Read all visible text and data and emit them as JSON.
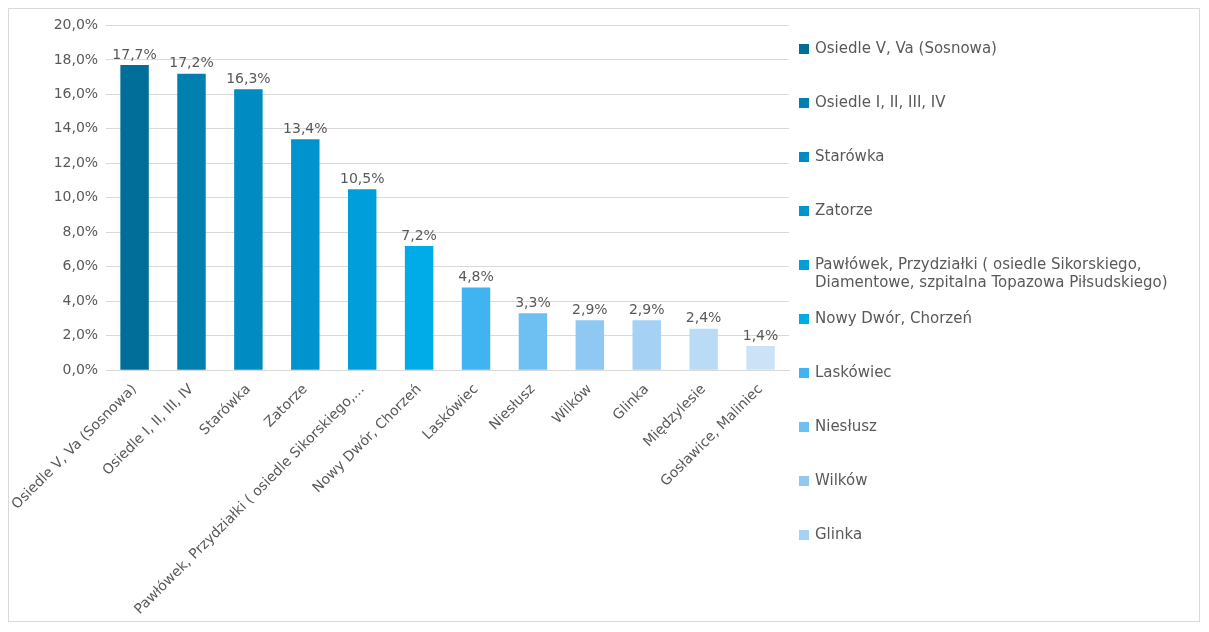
{
  "chart_data": {
    "type": "bar",
    "categories": [
      "Osiedle V, Va (Sosnowa)",
      "Osiedle I, II, III, IV",
      "Starówka",
      "Zatorze",
      "Pawłówek, Przydziałki ( osiedle Sikorskiego,...",
      "Nowy Dwór, Chorzeń",
      "Laskówiec",
      "Niesłusz",
      "Wilków",
      "Glinka",
      "Międzylesie",
      "Gosławice, Maliniec"
    ],
    "series": [
      {
        "name": "Osiedle V, Va (Sosnowa)",
        "color": "#006e99",
        "values": [
          17.7,
          null,
          null,
          null,
          null,
          null,
          null,
          null,
          null,
          null,
          null,
          null
        ],
        "value_labels": [
          "17,7%",
          null,
          null,
          null,
          null,
          null,
          null,
          null,
          null,
          null,
          null,
          null
        ]
      },
      {
        "name": "Osiedle I, II, III, IV",
        "color": "#0080b0",
        "values": [
          null,
          17.2,
          null,
          null,
          null,
          null,
          null,
          null,
          null,
          null,
          null,
          null
        ],
        "value_labels": [
          null,
          "17,2%",
          null,
          null,
          null,
          null,
          null,
          null,
          null,
          null,
          null,
          null
        ]
      },
      {
        "name": "Starówka",
        "color": "#008bc2",
        "values": [
          null,
          null,
          16.3,
          null,
          null,
          null,
          null,
          null,
          null,
          null,
          null,
          null
        ],
        "value_labels": [
          null,
          null,
          "16,3%",
          null,
          null,
          null,
          null,
          null,
          null,
          null,
          null,
          null
        ]
      },
      {
        "name": "Zatorze",
        "color": "#0094cf",
        "values": [
          null,
          null,
          null,
          13.4,
          null,
          null,
          null,
          null,
          null,
          null,
          null,
          null
        ],
        "value_labels": [
          null,
          null,
          null,
          "13,4%",
          null,
          null,
          null,
          null,
          null,
          null,
          null,
          null
        ]
      },
      {
        "name": "Pawłówek, Przydziałki ( osiedle Sikorskiego, Diamentowe, szpitalna Topazowa Piłsudskiego)",
        "color": "#009fdb",
        "values": [
          null,
          null,
          null,
          null,
          10.5,
          null,
          null,
          null,
          null,
          null,
          null,
          null
        ],
        "value_labels": [
          null,
          null,
          null,
          null,
          "10,5%",
          null,
          null,
          null,
          null,
          null,
          null,
          null
        ]
      },
      {
        "name": "Nowy Dwór, Chorzeń",
        "color": "#00ace8",
        "values": [
          null,
          null,
          null,
          null,
          null,
          7.2,
          null,
          null,
          null,
          null,
          null,
          null
        ],
        "value_labels": [
          null,
          null,
          null,
          null,
          null,
          "7,2%",
          null,
          null,
          null,
          null,
          null,
          null
        ]
      },
      {
        "name": "Laskówiec",
        "color": "#3fb4f0",
        "values": [
          null,
          null,
          null,
          null,
          null,
          null,
          4.8,
          null,
          null,
          null,
          null,
          null
        ],
        "value_labels": [
          null,
          null,
          null,
          null,
          null,
          null,
          "4,8%",
          null,
          null,
          null,
          null,
          null
        ]
      },
      {
        "name": "Niesłusz",
        "color": "#6fc0f2",
        "values": [
          null,
          null,
          null,
          null,
          null,
          null,
          null,
          3.3,
          null,
          null,
          null,
          null
        ],
        "value_labels": [
          null,
          null,
          null,
          null,
          null,
          null,
          null,
          "3,3%",
          null,
          null,
          null,
          null
        ]
      },
      {
        "name": "Wilków",
        "color": "#8ec8f3",
        "values": [
          null,
          null,
          null,
          null,
          null,
          null,
          null,
          null,
          2.9,
          null,
          null,
          null
        ],
        "value_labels": [
          null,
          null,
          null,
          null,
          null,
          null,
          null,
          null,
          "2,9%",
          null,
          null,
          null
        ]
      },
      {
        "name": "Glinka",
        "color": "#a5d1f5",
        "values": [
          null,
          null,
          null,
          null,
          null,
          null,
          null,
          null,
          null,
          2.9,
          null,
          null
        ],
        "value_labels": [
          null,
          null,
          null,
          null,
          null,
          null,
          null,
          null,
          null,
          "2,9%",
          null,
          null
        ]
      },
      {
        "color": "#badbf6",
        "values": [
          null,
          null,
          null,
          null,
          null,
          null,
          null,
          null,
          null,
          null,
          2.4,
          null
        ],
        "value_labels": [
          null,
          null,
          null,
          null,
          null,
          null,
          null,
          null,
          null,
          null,
          "2,4%",
          null
        ]
      },
      {
        "color": "#cce3f7",
        "values": [
          null,
          null,
          null,
          null,
          null,
          null,
          null,
          null,
          null,
          null,
          null,
          1.4
        ],
        "value_labels": [
          null,
          null,
          null,
          null,
          null,
          null,
          null,
          null,
          null,
          null,
          null,
          "1,4%"
        ]
      }
    ],
    "ylim": [
      0,
      20
    ],
    "yticks": [
      {
        "value": 0,
        "label": "0,0%"
      },
      {
        "value": 2,
        "label": "2,0%"
      },
      {
        "value": 4,
        "label": "4,0%"
      },
      {
        "value": 6,
        "label": "6,0%"
      },
      {
        "value": 8,
        "label": "8,0%"
      },
      {
        "value": 10,
        "label": "10,0%"
      },
      {
        "value": 12,
        "label": "12,0%"
      },
      {
        "value": 14,
        "label": "14,0%"
      },
      {
        "value": 16,
        "label": "16,0%"
      },
      {
        "value": 18,
        "label": "18,0%"
      },
      {
        "value": 20,
        "label": "20,0%"
      }
    ],
    "grid": "y",
    "legend": "right"
  }
}
